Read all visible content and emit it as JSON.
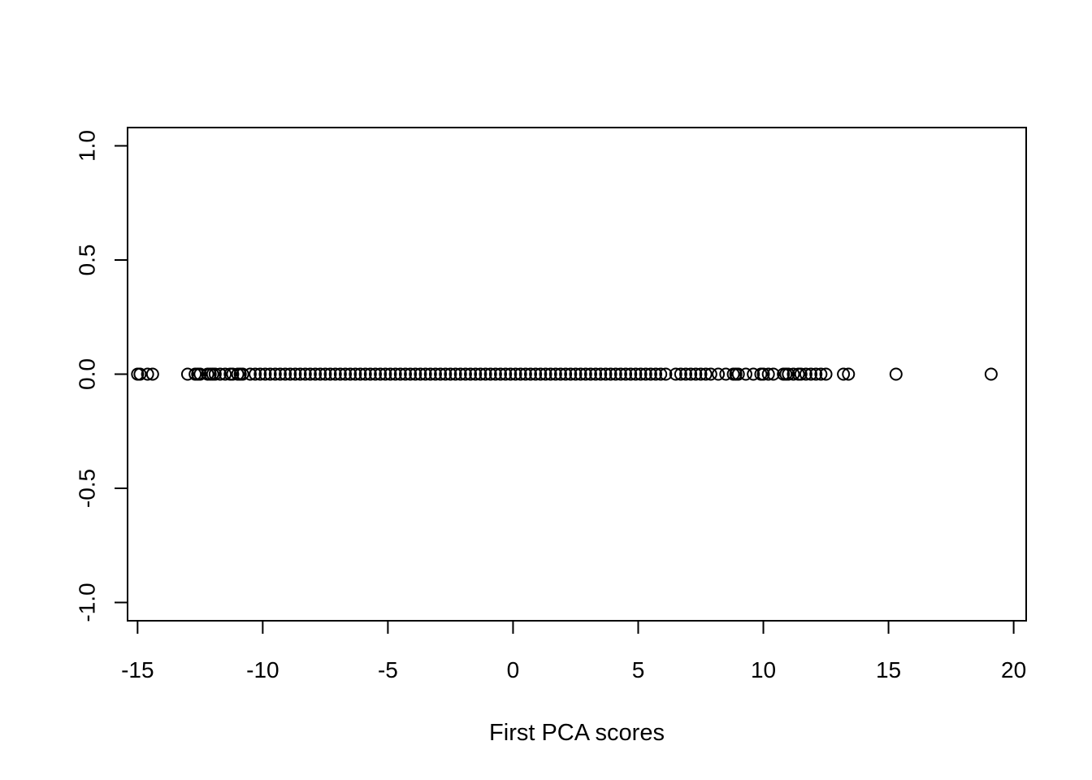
{
  "chart_data": {
    "type": "scatter",
    "title": "",
    "xlabel": "First PCA scores",
    "ylabel": "",
    "xlim": [
      -15.4,
      20.5
    ],
    "ylim": [
      -1.08,
      1.08
    ],
    "x_ticks": [
      -15,
      -10,
      -5,
      0,
      5,
      10,
      15,
      20
    ],
    "x_tick_labels": [
      "-15",
      "-10",
      "-5",
      "0",
      "5",
      "10",
      "15",
      "20"
    ],
    "y_ticks": [
      -1.0,
      -0.5,
      0.0,
      0.5,
      1.0
    ],
    "y_tick_labels": [
      "-1.0",
      "-0.5",
      "0.0",
      "0.5",
      "1.0"
    ],
    "grid": false,
    "legend": "none",
    "marker": "open-circle",
    "series": [
      {
        "y_constant": 0,
        "x": [
          -15.0,
          -14.9,
          -14.6,
          -14.4,
          -13.0,
          -12.7,
          -12.6,
          -12.5,
          -12.2,
          -12.1,
          -12.0,
          -11.9,
          -11.7,
          -11.5,
          -11.3,
          -11.2,
          -11.0,
          -10.9,
          -10.8,
          -10.5,
          -10.3,
          -10.1,
          -9.9,
          -9.7,
          -9.5,
          -9.3,
          -9.1,
          -8.9,
          -8.7,
          -8.5,
          -8.3,
          -8.1,
          -7.9,
          -7.7,
          -7.5,
          -7.3,
          -7.1,
          -6.9,
          -6.7,
          -6.5,
          -6.3,
          -6.1,
          -5.9,
          -5.7,
          -5.5,
          -5.3,
          -5.1,
          -4.9,
          -4.7,
          -4.5,
          -4.3,
          -4.1,
          -3.9,
          -3.7,
          -3.5,
          -3.3,
          -3.1,
          -2.9,
          -2.7,
          -2.5,
          -2.3,
          -2.1,
          -1.9,
          -1.7,
          -1.5,
          -1.3,
          -1.1,
          -0.9,
          -0.7,
          -0.5,
          -0.3,
          -0.1,
          0.1,
          0.3,
          0.5,
          0.7,
          0.9,
          1.1,
          1.3,
          1.5,
          1.7,
          1.9,
          2.1,
          2.3,
          2.5,
          2.7,
          2.9,
          3.1,
          3.3,
          3.5,
          3.7,
          3.9,
          4.1,
          4.3,
          4.5,
          4.7,
          4.9,
          5.1,
          5.3,
          5.5,
          5.7,
          5.9,
          6.1,
          6.5,
          6.7,
          6.9,
          7.1,
          7.3,
          7.5,
          7.7,
          7.9,
          8.2,
          8.5,
          8.8,
          8.9,
          9.0,
          9.3,
          9.6,
          9.9,
          10.0,
          10.2,
          10.4,
          10.8,
          10.9,
          11.0,
          11.2,
          11.4,
          11.5,
          11.7,
          11.9,
          12.1,
          12.3,
          12.5,
          13.2,
          13.4,
          15.3,
          19.1
        ]
      }
    ]
  }
}
